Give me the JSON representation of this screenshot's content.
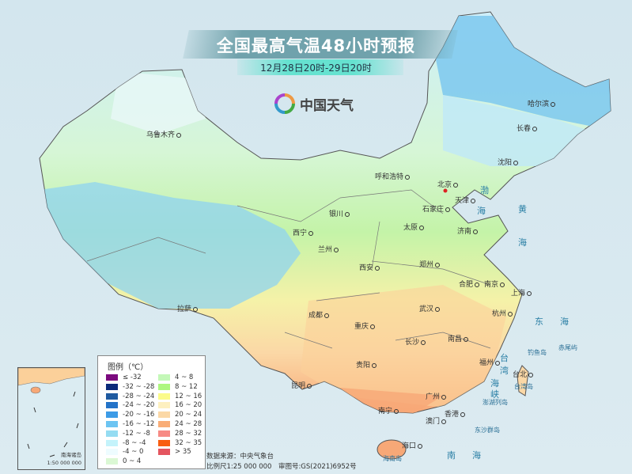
{
  "header": {
    "title": "全国最高气温48小时预报",
    "subtitle": "12月28日20时-29日20时"
  },
  "logo": {
    "text": "中国天气",
    "icon": "china-weather-logo-icon"
  },
  "cities": [
    {
      "name": "乌鲁木齐"
    },
    {
      "name": "呼和浩特"
    },
    {
      "name": "北京"
    },
    {
      "name": "天津"
    },
    {
      "name": "石家庄"
    },
    {
      "name": "太原"
    },
    {
      "name": "济南"
    },
    {
      "name": "银川"
    },
    {
      "name": "西宁"
    },
    {
      "name": "兰州"
    },
    {
      "name": "西安"
    },
    {
      "name": "郑州"
    },
    {
      "name": "合肥"
    },
    {
      "name": "南京"
    },
    {
      "name": "上海"
    },
    {
      "name": "杭州"
    },
    {
      "name": "武汉"
    },
    {
      "name": "南昌"
    },
    {
      "name": "长沙"
    },
    {
      "name": "成都"
    },
    {
      "name": "重庆"
    },
    {
      "name": "贵阳"
    },
    {
      "name": "昆明"
    },
    {
      "name": "拉萨"
    },
    {
      "name": "南宁"
    },
    {
      "name": "广州"
    },
    {
      "name": "香港"
    },
    {
      "name": "澳门"
    },
    {
      "name": "海口"
    },
    {
      "name": "福州"
    },
    {
      "name": "台北"
    },
    {
      "name": "哈尔滨"
    },
    {
      "name": "长春"
    },
    {
      "name": "沈阳"
    }
  ],
  "seas": [
    "渤",
    "海",
    "黄",
    "海",
    "东",
    "海",
    "南",
    "海",
    "台",
    "湾",
    "海",
    "峡"
  ],
  "islands": [
    "钓鱼岛",
    "赤尾屿",
    "台湾岛",
    "澎湖列岛",
    "东沙群岛",
    "海南岛"
  ],
  "legend": {
    "title": "图例（℃）",
    "items": [
      {
        "label": "≤ -32",
        "color": "#7b0a7e"
      },
      {
        "label": "-32 ~ -28",
        "color": "#0b2a7a"
      },
      {
        "label": "-28 ~ -24",
        "color": "#1f5aa0"
      },
      {
        "label": "-24 ~ -20",
        "color": "#2473c8"
      },
      {
        "label": "-20 ~ -16",
        "color": "#3d9be6"
      },
      {
        "label": "-16 ~ -12",
        "color": "#6cc4f2"
      },
      {
        "label": "-12 ~ -8",
        "color": "#95dcf2"
      },
      {
        "label": "-8 ~ -4",
        "color": "#c4f3fb"
      },
      {
        "label": "-4 ~ 0",
        "color": "#eefcff"
      },
      {
        "label": "0 ~ 4",
        "color": "#dbf8d4"
      },
      {
        "label": "4 ~ 8",
        "color": "#c4f8b8"
      },
      {
        "label": "8 ~ 12",
        "color": "#aef77f"
      },
      {
        "label": "12 ~ 16",
        "color": "#fbfb8a"
      },
      {
        "label": "16 ~ 20",
        "color": "#fdf0c0"
      },
      {
        "label": "20 ~ 24",
        "color": "#fbd8a6"
      },
      {
        "label": "24 ~ 28",
        "color": "#f9ad77"
      },
      {
        "label": "28 ~ 32",
        "color": "#f78a84"
      },
      {
        "label": "32 ~ 35",
        "color": "#f95d10"
      },
      {
        "label": "> 35",
        "color": "#e4555f"
      }
    ]
  },
  "inset": {
    "title": "南海诸岛",
    "scale": "1:50 000 000"
  },
  "footer": {
    "source": "数据来源：中央气象台",
    "scale": "比例尺1:25 000 000　审图号:GS(2021)6952号"
  }
}
